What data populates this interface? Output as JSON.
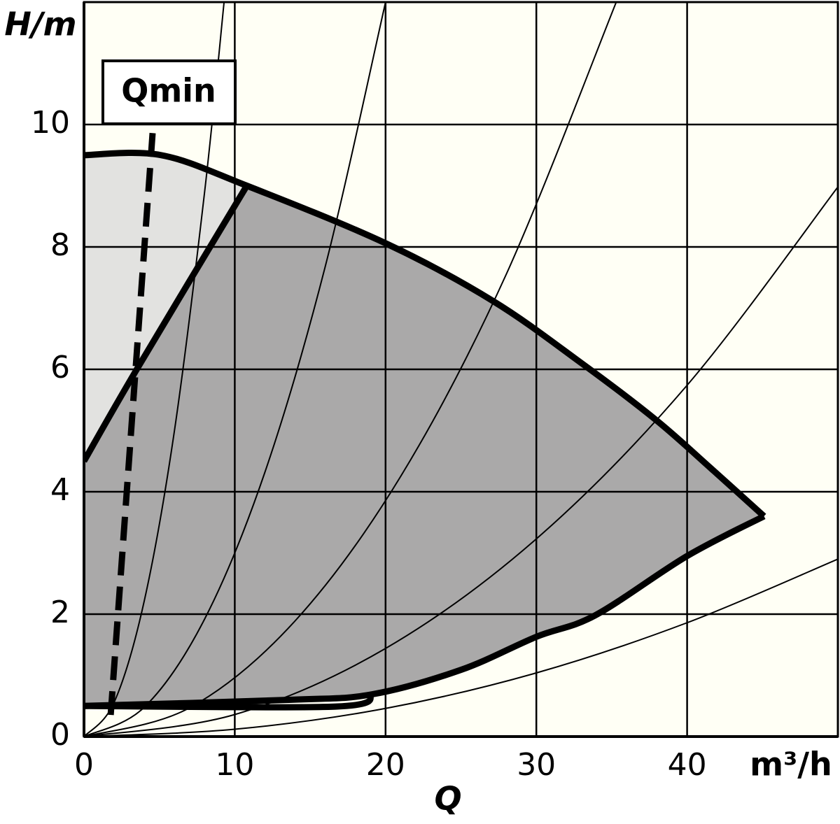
{
  "chart_data": {
    "type": "line",
    "y_label": "H/m",
    "x_label": "Q",
    "x_unit": "m³/h",
    "annotation": "Qmin",
    "xlim": [
      0,
      50
    ],
    "ylim": [
      0,
      12
    ],
    "xticks": [
      0,
      10,
      20,
      30,
      40
    ],
    "yticks": [
      0,
      2,
      4,
      6,
      8,
      10
    ],
    "grid": true,
    "background": "#fffff5",
    "area_color": "#aaa9a9",
    "light_area_color": "#e2e2e0",
    "series": [
      {
        "style": "thick",
        "color": "#000000",
        "x": [
          0,
          5.1,
          10.8,
          20,
          27.1,
          33,
          37.9,
          41.5,
          45.1
        ],
        "values": [
          9.5,
          9.5,
          9.0,
          8.06,
          7.12,
          6.1,
          5.18,
          4.4,
          3.6
        ]
      },
      {
        "style": "thick",
        "color": "#000000",
        "x": [
          0,
          13.6,
          19.1,
          25,
          30,
          33.9,
          40,
          45.1
        ],
        "values": [
          0.5,
          0.6,
          0.69,
          1.09,
          1.63,
          1.98,
          2.95,
          3.6
        ]
      },
      {
        "style": "thick",
        "color": "#000000",
        "x": [
          0,
          16.7,
          19.1
        ],
        "values": [
          0.5,
          0.49,
          0.69
        ]
      },
      {
        "style": "thick",
        "color": "#000000",
        "x": [
          0,
          3.5,
          10.8
        ],
        "values": [
          4.5,
          6.0,
          9.0
        ]
      },
      {
        "style": "dashed",
        "color": "#000000",
        "x": [
          4.55,
          1.76
        ],
        "values": [
          9.86,
          0.32
        ]
      },
      {
        "style": "thin",
        "color": "#000000",
        "x": [
          0,
          2,
          4,
          6,
          8,
          9.29
        ],
        "values": [
          0,
          0.56,
          2.22,
          5.0,
          8.9,
          12.0
        ]
      },
      {
        "style": "thin",
        "color": "#000000",
        "x": [
          0,
          4,
          8,
          12,
          16,
          20
        ],
        "values": [
          0,
          0.48,
          1.92,
          4.32,
          7.68,
          12.0
        ]
      },
      {
        "style": "thin",
        "color": "#000000",
        "x": [
          0,
          7,
          14,
          21,
          28,
          35.3
        ],
        "values": [
          0,
          0.47,
          1.89,
          4.25,
          7.55,
          12.0
        ]
      },
      {
        "style": "thin",
        "color": "#000000",
        "x": [
          0,
          10,
          20,
          30,
          40,
          50
        ],
        "values": [
          0,
          0.36,
          1.44,
          3.23,
          5.74,
          8.98
        ]
      },
      {
        "style": "thin",
        "color": "#000000",
        "x": [
          0,
          10,
          20,
          30,
          40,
          50
        ],
        "values": [
          0,
          0.12,
          0.46,
          1.04,
          1.86,
          2.9
        ]
      }
    ]
  }
}
